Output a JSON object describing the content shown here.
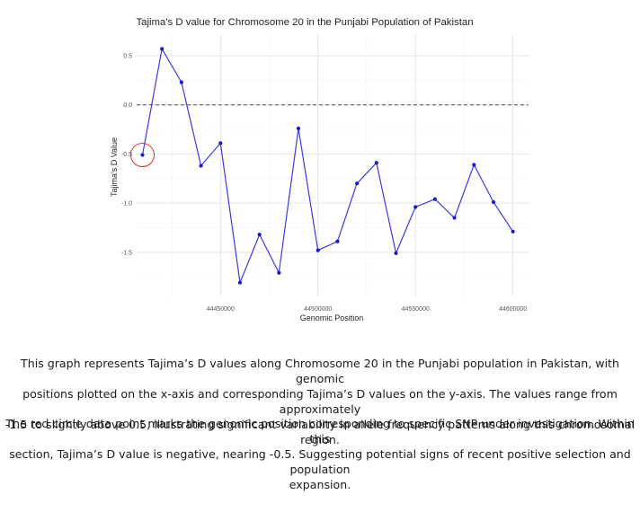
{
  "chart_data": {
    "type": "line",
    "title": "Tajima's D value for Chromosome 20 in the Punjabi Population of Pakistan",
    "xlabel": "Genomic Position",
    "ylabel": "Tajima's D Value",
    "xlim": [
      44407000,
      44608000
    ],
    "ylim": [
      -1.95,
      0.72
    ],
    "x_ticks": [
      44450000,
      44500000,
      44550000,
      44600000
    ],
    "x_tick_labels": [
      "44450000",
      "44500000",
      "44550000",
      "44600000"
    ],
    "y_ticks": [
      0.5,
      0.0,
      -0.5,
      -1.0,
      -1.5
    ],
    "y_tick_labels": [
      "0.5",
      "0.0",
      "-0.5",
      "-1.0",
      "-1.5"
    ],
    "grid": true,
    "reference_line": {
      "y": 0.0,
      "style": "dashed",
      "color": "#555555"
    },
    "series": [
      {
        "color": "#3a3ae6",
        "x": [
          44410000,
          44420000,
          44430000,
          44440000,
          44450000,
          44460000,
          44470000,
          44480000,
          44490000,
          44500000,
          44510000,
          44520000,
          44530000,
          44540000,
          44550000,
          44560000,
          44570000,
          44580000,
          44590000,
          44600000
        ],
        "y": [
          -0.51,
          0.57,
          0.23,
          -0.62,
          -0.39,
          -1.81,
          -1.32,
          -1.71,
          -0.24,
          -1.48,
          -1.39,
          -0.8,
          -0.59,
          -1.51,
          -1.04,
          -0.96,
          -1.15,
          -0.61,
          -0.99,
          -1.29
        ]
      }
    ],
    "highlight": {
      "x": 44410000,
      "y": -0.51,
      "shape": "circle",
      "color": "#e03030"
    }
  },
  "caption": {
    "paragraph1": [
      "This graph represents Tajima’s D values along Chromosome 20 in the Punjabi population in Pakistan, with genomic",
      "positions plotted on the x-axis and corresponding Tajima’s D values on the y-axis. The values range from approximately",
      "-1.5 to slightly above 0.5, illustrating significant variability in allele frequency patterns along this chromosomal region."
    ],
    "paragraph2": [
      "The red circle data point marks the genomic position corresponding to specific SNP under investigation. Within this",
      "section, Tajima’s D value is negative, nearing -0.5. Suggesting potential signs of recent positive selection and population",
      "expansion."
    ]
  }
}
